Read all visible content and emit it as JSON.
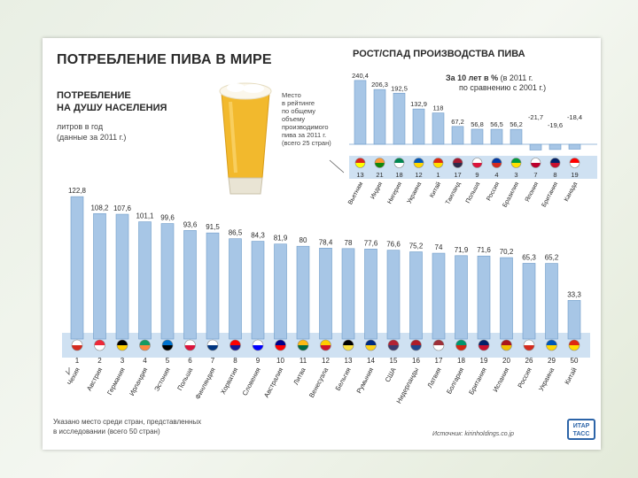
{
  "header": {
    "title": "ПОТРЕБЛЕНИЕ ПИВА В МИРЕ",
    "sub_title_line1": "ПОТРЕБЛЕНИЕ",
    "sub_title_line2": "НА ДУШУ НАСЕЛЕНИЯ",
    "unit_line1": "литров в год",
    "unit_line2": "(данные за 2011 г.)",
    "rank_note": "Место\nв рейтинге\nпо общему\nобъему\nпроизводимого\nпива за 2011 г.\n(всего 25 стран)"
  },
  "production": {
    "title": "РОСТ/СПАД ПРОИЗВОДСТВА ПИВА",
    "note_bold": "За 10 лет в %",
    "note_rest": " (в 2011 г.",
    "note_line2": "по сравнению с 2001 г.)"
  },
  "footer": {
    "footnote_line1": "Указано место среди стран, представленных",
    "footnote_line2": "в исследовании (всего 50 стран)",
    "source": "Источник: kirinholdings.co.jp",
    "logo_line1": "ИТАР",
    "logo_line2": "ТАСС"
  },
  "colors": {
    "bar": "#a7c6e6",
    "bar_edge": "#6f9cc9",
    "band": "#cfe1f2",
    "text": "#2a2a2a"
  },
  "chart_data": [
    {
      "type": "bar",
      "title": "ПОТРЕБЛЕНИЕ НА ДУШУ НАСЕЛЕНИЯ",
      "ylabel": "литров в год",
      "ylim": [
        0,
        130
      ],
      "categories": [
        "Чехия",
        "Австрия",
        "Германия",
        "Ирландия",
        "Эстония",
        "Польша",
        "Финляндия",
        "Хорватия",
        "Словения",
        "Австралия",
        "Литва",
        "Венесуэла",
        "Бельгия",
        "Румыния",
        "США",
        "Нидерланды",
        "Латвия",
        "Болгария",
        "Британия",
        "Испания",
        "Россия",
        "Украина",
        "Китай"
      ],
      "values": [
        122.8,
        108.2,
        107.6,
        101.1,
        99.6,
        93.6,
        91.5,
        86.5,
        84.3,
        81.9,
        80,
        78.4,
        78,
        77.6,
        76.6,
        75.2,
        74,
        71.9,
        71.6,
        70.2,
        65.3,
        65.2,
        33.3
      ],
      "value_labels": [
        "122,8",
        "108,2",
        "107,6",
        "101,1",
        "99,6",
        "93,6",
        "91,5",
        "86,5",
        "84,3",
        "81,9",
        "80",
        "78,4",
        "78",
        "77,6",
        "76,6",
        "75,2",
        "74",
        "71,9",
        "71,6",
        "70,2",
        "65,3",
        "65,2",
        "33,3"
      ],
      "ranks": [
        "1",
        "2",
        "3",
        "4",
        "5",
        "6",
        "7",
        "8",
        "9",
        "10",
        "11",
        "12",
        "13",
        "14",
        "15",
        "16",
        "17",
        "18",
        "19",
        "20",
        "26",
        "29",
        "50"
      ],
      "flag_colors": [
        [
          "#ffffff",
          "#d52b1e"
        ],
        [
          "#ed2939",
          "#ffffff"
        ],
        [
          "#000000",
          "#ffce00"
        ],
        [
          "#169b62",
          "#ff883e"
        ],
        [
          "#0072ce",
          "#000000"
        ],
        [
          "#ffffff",
          "#dc143c"
        ],
        [
          "#ffffff",
          "#003580"
        ],
        [
          "#ff0000",
          "#171796"
        ],
        [
          "#ffffff",
          "#0000ff"
        ],
        [
          "#00008b",
          "#ff0000"
        ],
        [
          "#fdb913",
          "#006a44"
        ],
        [
          "#ffcc00",
          "#cf142b"
        ],
        [
          "#000000",
          "#fae042"
        ],
        [
          "#002b7f",
          "#fcd116"
        ],
        [
          "#b22234",
          "#3c3b6e"
        ],
        [
          "#ae1c28",
          "#21468b"
        ],
        [
          "#9e3039",
          "#ffffff"
        ],
        [
          "#00966e",
          "#d62612"
        ],
        [
          "#012169",
          "#c8102e"
        ],
        [
          "#aa151b",
          "#f1bf00"
        ],
        [
          "#ffffff",
          "#d52b1e"
        ],
        [
          "#0057b7",
          "#ffd700"
        ],
        [
          "#de2910",
          "#ffde00"
        ]
      ]
    },
    {
      "type": "bar",
      "title": "РОСТ/СПАД ПРОИЗВОДСТВА ПИВА",
      "ylabel": "За 10 лет в %",
      "categories": [
        "Вьетнам",
        "Индия",
        "Нигерия",
        "Украина",
        "Китай",
        "Таиланд",
        "Польша",
        "Россия",
        "Бразилия",
        "Япония",
        "Британия",
        "Канада"
      ],
      "values": [
        240.4,
        206.3,
        192.5,
        132.9,
        118,
        67.2,
        56.8,
        56.5,
        56.2,
        -21.7,
        -19.6,
        -18.4
      ],
      "value_labels": [
        "240,4",
        "206,3",
        "192,5",
        "132,9",
        "118",
        "67,2",
        "56,8",
        "56,5",
        "56,2",
        "-21,7",
        "-19,6",
        "-18,4"
      ],
      "ranks": [
        "13",
        "21",
        "18",
        "12",
        "1",
        "17",
        "9",
        "4",
        "3",
        "7",
        "8",
        "19"
      ],
      "flag_colors": [
        [
          "#da251d",
          "#ffff00"
        ],
        [
          "#ff9933",
          "#138808"
        ],
        [
          "#008751",
          "#ffffff"
        ],
        [
          "#0057b7",
          "#ffd700"
        ],
        [
          "#de2910",
          "#ffde00"
        ],
        [
          "#a51931",
          "#2d2a4a"
        ],
        [
          "#ffffff",
          "#dc143c"
        ],
        [
          "#0039a6",
          "#d52b1e"
        ],
        [
          "#009c3b",
          "#ffdf00"
        ],
        [
          "#ffffff",
          "#bc002d"
        ],
        [
          "#012169",
          "#c8102e"
        ],
        [
          "#ff0000",
          "#ffffff"
        ]
      ]
    }
  ]
}
